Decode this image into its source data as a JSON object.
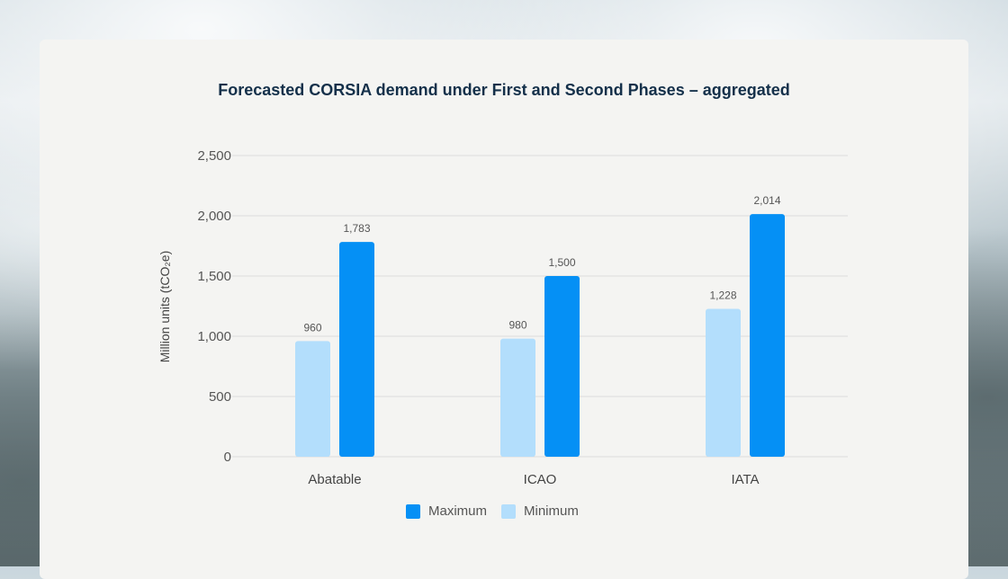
{
  "chart_data": {
    "type": "bar",
    "title": "Forecasted CORSIA demand under First and Second Phases – aggregated",
    "ylabel": "Million units (tCO₂e)",
    "xlabel": "",
    "categories": [
      "Abatable",
      "ICAO",
      "IATA"
    ],
    "series": [
      {
        "name": "Minimum",
        "color": "#b3defc",
        "values": [
          960,
          980,
          1228
        ],
        "labels": [
          "960",
          "980",
          "1,228"
        ]
      },
      {
        "name": "Maximum",
        "color": "#0590f5",
        "values": [
          1783,
          1500,
          2014
        ],
        "labels": [
          "1,783",
          "1,500",
          "2,014"
        ]
      }
    ],
    "ylim": [
      0,
      2500
    ],
    "yticks": [
      0,
      500,
      1000,
      1500,
      2000,
      2500
    ],
    "ytick_labels": [
      "0",
      "500",
      "1,000",
      "1,500",
      "2,000",
      "2,500"
    ],
    "grid": true,
    "legend": "bottom-center"
  },
  "legend": {
    "items": [
      "Maximum",
      "Minimum"
    ]
  }
}
